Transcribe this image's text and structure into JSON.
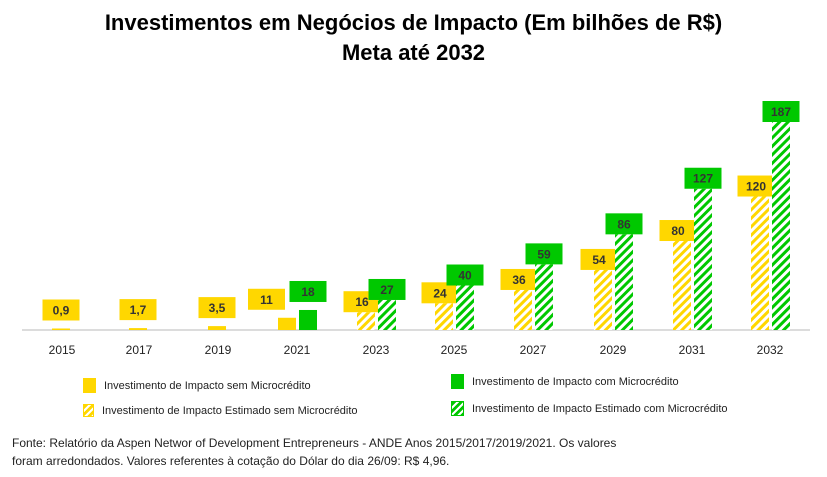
{
  "chart_data": {
    "type": "bar",
    "title": "Investimentos em Negócios de Impacto (Em bilhões de R$)",
    "subtitle": "Meta até 2032",
    "categories": [
      "2015",
      "2017",
      "2019",
      "2021",
      "2023",
      "2025",
      "2027",
      "2029",
      "2031",
      "2032"
    ],
    "series": [
      {
        "name": "Investimento de Impacto sem Microcrédito",
        "color": "#FFD700",
        "pattern": "solid",
        "values": [
          0.9,
          1.7,
          3.5,
          11,
          null,
          null,
          null,
          null,
          null,
          null
        ],
        "labels": [
          "0,9",
          "1,7",
          "3,5",
          "11",
          null,
          null,
          null,
          null,
          null,
          null
        ]
      },
      {
        "name": "Investimento de Impacto com Microcrédito",
        "color": "#00C800",
        "pattern": "solid",
        "values": [
          null,
          null,
          null,
          18,
          null,
          null,
          null,
          null,
          null,
          null
        ],
        "labels": [
          null,
          null,
          null,
          "18",
          null,
          null,
          null,
          null,
          null,
          null
        ]
      },
      {
        "name": "Investimento de  Impacto Estimado sem Microcrédito",
        "color": "#FFD700",
        "pattern": "hatched",
        "values": [
          null,
          null,
          null,
          null,
          16,
          24,
          36,
          54,
          80,
          120
        ],
        "labels": [
          null,
          null,
          null,
          null,
          "16",
          "24",
          "36",
          "54",
          "80",
          "120"
        ]
      },
      {
        "name": "Investimento de Impacto Estimado com Microcrédito",
        "color": "#00C800",
        "pattern": "hatched",
        "values": [
          null,
          null,
          null,
          null,
          27,
          40,
          59,
          86,
          127,
          187
        ],
        "labels": [
          null,
          null,
          null,
          null,
          "27",
          "40",
          "59",
          "86",
          "127",
          "187"
        ]
      }
    ],
    "ylim": [
      0,
      190
    ],
    "grid": false,
    "legend": "bottom"
  },
  "source_note_line1": "Fonte: Relatório da Aspen Networ of Development Entrepreneurs - ANDE Anos 2015/2017/2019/2021. Os valores",
  "source_note_line2": "foram arredondados. Valores referentes à cotação do Dólar do dia 26/09: R$ 4,96."
}
